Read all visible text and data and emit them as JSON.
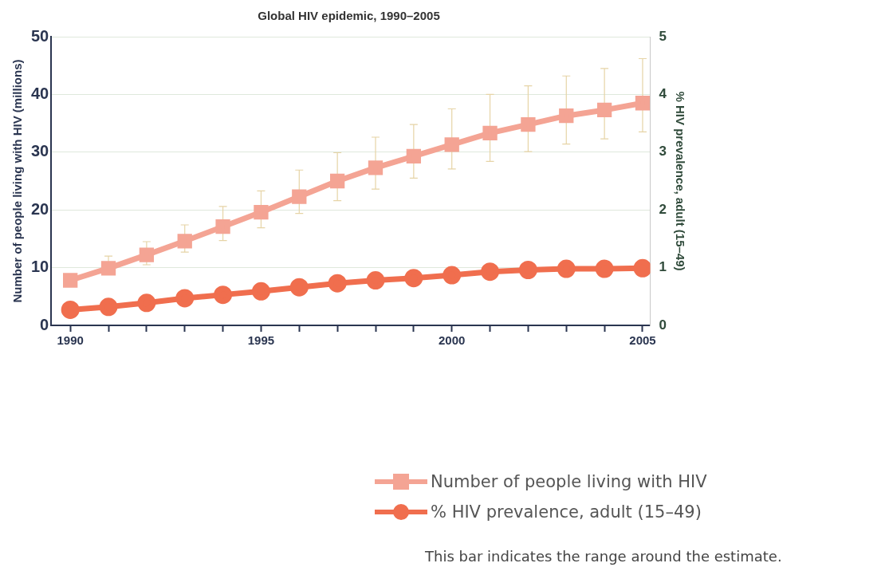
{
  "chart_data": {
    "type": "line",
    "title": "Global HIV epidemic, 1990–2005",
    "ylabel": "Number of people living with HIV (millions)",
    "y2label": "% HIV prevalence, adult (15–49)",
    "x": [
      1990,
      1991,
      1992,
      1993,
      1994,
      1995,
      1996,
      1997,
      1998,
      1999,
      2000,
      2001,
      2002,
      2003,
      2004,
      2005
    ],
    "xlim": [
      1989.5,
      2005.2
    ],
    "xticks": [
      1990,
      {
        "value": 1991,
        "label": null
      },
      {
        "value": 1992,
        "label": null
      },
      {
        "value": 1993,
        "label": null
      },
      {
        "value": 1994,
        "label": null
      },
      1995,
      {
        "value": 1996,
        "label": null
      },
      {
        "value": 1997,
        "label": null
      },
      {
        "value": 1998,
        "label": null
      },
      {
        "value": 1999,
        "label": null
      },
      2000,
      {
        "value": 2001,
        "label": null
      },
      {
        "value": 2002,
        "label": null
      },
      {
        "value": 2003,
        "label": null
      },
      {
        "value": 2004,
        "label": null
      },
      2005
    ],
    "ylim": [
      0,
      50
    ],
    "yticks": [
      0,
      10,
      20,
      30,
      40,
      50
    ],
    "y2lim": [
      0,
      5
    ],
    "y2ticks": [
      0,
      1,
      2,
      3,
      4,
      5
    ],
    "grid": "y",
    "legend": "bottom right",
    "series": [
      {
        "name": "Number of people living with HIV",
        "color": "#f4a494",
        "marker": "square",
        "values": [
          7.8,
          9.9,
          12.2,
          14.6,
          17.1,
          19.6,
          22.3,
          25.0,
          27.3,
          29.3,
          31.3,
          33.3,
          34.8,
          36.3,
          37.3,
          38.5
        ],
        "errors": [
          null,
          [
            8.8,
            12.0
          ],
          [
            10.5,
            14.5
          ],
          [
            12.7,
            17.4
          ],
          [
            14.7,
            20.6
          ],
          [
            16.9,
            23.3
          ],
          [
            19.4,
            26.9
          ],
          [
            21.6,
            29.9
          ],
          [
            23.6,
            32.6
          ],
          [
            25.5,
            34.8
          ],
          [
            27.1,
            37.5
          ],
          [
            28.4,
            40.0
          ],
          [
            30.1,
            41.5
          ],
          [
            31.4,
            43.2
          ],
          [
            32.3,
            44.5
          ],
          [
            33.5,
            46.2
          ]
        ]
      },
      {
        "name": "% HIV prevalence, adult (15–49)",
        "color": "#f06e4e",
        "marker": "circle",
        "axis": "y2",
        "values": [
          0.27,
          0.32,
          0.39,
          0.47,
          0.53,
          0.59,
          0.66,
          0.73,
          0.78,
          0.82,
          0.87,
          0.93,
          0.96,
          0.98,
          0.98,
          0.99
        ]
      }
    ],
    "annotations": [
      "This bar indicates the range around the estimate."
    ]
  }
}
